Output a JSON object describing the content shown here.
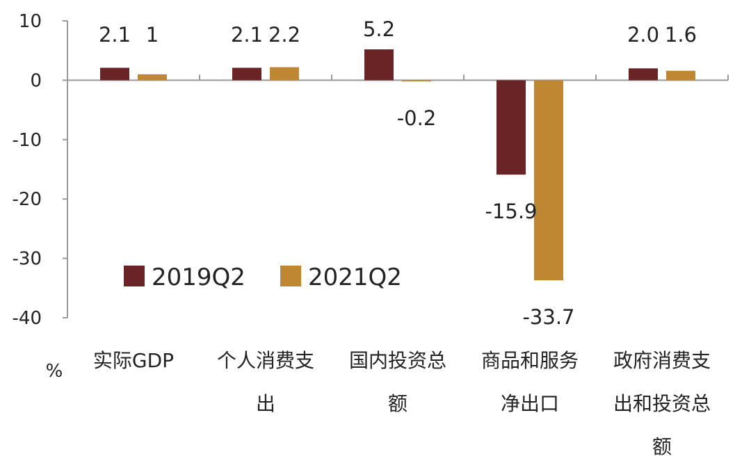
{
  "chart_data": {
    "type": "bar",
    "title": "",
    "xlabel": "",
    "ylabel": "%",
    "ylim": [
      -40,
      10
    ],
    "yticks": [
      10,
      0,
      -10,
      -20,
      -30,
      -40
    ],
    "categories": [
      [
        "实际GDP"
      ],
      [
        "个人消费支",
        "出"
      ],
      [
        "国内投资总",
        "额"
      ],
      [
        "商品和服务",
        "净出口"
      ],
      [
        "政府消费支",
        "出和投资总",
        "额"
      ]
    ],
    "series": [
      {
        "name": "2019Q2",
        "color": "#6b2425",
        "values": [
          2.1,
          2.1,
          5.2,
          -15.9,
          2.0
        ],
        "labels": [
          "2.1",
          "2.1",
          "5.2",
          "-15.9",
          "2.0"
        ]
      },
      {
        "name": "2021Q2",
        "color": "#c08733",
        "values": [
          1,
          2.2,
          -0.2,
          -33.7,
          1.6
        ],
        "labels": [
          "1",
          "2.2",
          "-0.2",
          "-33.7",
          "1.6"
        ]
      }
    ],
    "legend": "center-left, inside plot",
    "grid": false
  }
}
